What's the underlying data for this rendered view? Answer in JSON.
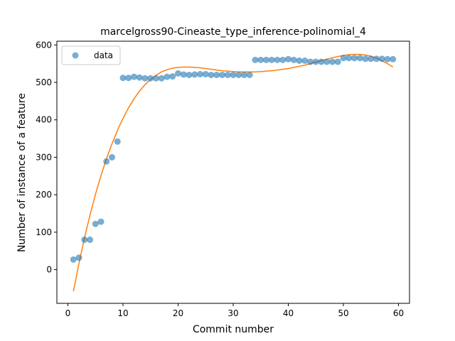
{
  "chart_data": {
    "type": "scatter",
    "title": "marcelgross90-Cineaste_type_inference-polinomial_4",
    "xlabel": "Commit number",
    "ylabel": "Number of instance of a feature",
    "xlim": [
      -2,
      62
    ],
    "ylim": [
      -90,
      610
    ],
    "x_ticks": [
      0,
      10,
      20,
      30,
      40,
      50,
      60
    ],
    "y_ticks": [
      0,
      100,
      200,
      300,
      400,
      500,
      600
    ],
    "grid": false,
    "legend": {
      "placement": "upper-left",
      "entries": [
        "data"
      ]
    },
    "colors": {
      "data": "#1f77b4",
      "fit": "#ff7f0e"
    },
    "series": [
      {
        "name": "data",
        "kind": "scatter",
        "x": [
          1,
          2,
          3,
          4,
          5,
          6,
          7,
          8,
          9,
          10,
          11,
          12,
          13,
          14,
          15,
          16,
          17,
          18,
          19,
          20,
          21,
          22,
          23,
          24,
          25,
          26,
          27,
          28,
          29,
          30,
          31,
          32,
          33,
          34,
          35,
          36,
          37,
          38,
          39,
          40,
          41,
          42,
          43,
          44,
          45,
          46,
          47,
          48,
          49,
          50,
          51,
          52,
          53,
          54,
          55,
          56,
          57,
          58,
          59
        ],
        "y": [
          27,
          32,
          80,
          80,
          122,
          128,
          289,
          300,
          342,
          512,
          512,
          515,
          513,
          511,
          511,
          511,
          511,
          515,
          516,
          524,
          521,
          520,
          521,
          522,
          522,
          520,
          520,
          520,
          520,
          520,
          520,
          520,
          520,
          560,
          560,
          560,
          560,
          560,
          560,
          562,
          560,
          558,
          558,
          555,
          555,
          555,
          555,
          555,
          555,
          565,
          565,
          565,
          565,
          563,
          563,
          563,
          563,
          562,
          562
        ]
      },
      {
        "kind": "line",
        "x": [
          1,
          2,
          3,
          4,
          5,
          6,
          7,
          8,
          9,
          10,
          11,
          12,
          13,
          14,
          15,
          16,
          17,
          18,
          19,
          20,
          21,
          22,
          23,
          24,
          25,
          26,
          27,
          28,
          29,
          30,
          31,
          32,
          33,
          34,
          35,
          36,
          37,
          38,
          39,
          40,
          41,
          42,
          43,
          44,
          45,
          46,
          47,
          48,
          49,
          50,
          51,
          52,
          53,
          54,
          55,
          56,
          57,
          58,
          59
        ],
        "y": [
          -58,
          16,
          84,
          145,
          201,
          251,
          296,
          336,
          372,
          404,
          432,
          456,
          477,
          494,
          508,
          519,
          528,
          534,
          538,
          540,
          541,
          541,
          540,
          539,
          537,
          535,
          533,
          531,
          530,
          529,
          528,
          528,
          528,
          528,
          529,
          530,
          531,
          533,
          535,
          537,
          540,
          543,
          546,
          550,
          554,
          558,
          562,
          566,
          569,
          572,
          574,
          575,
          575,
          573,
          570,
          565,
          558,
          550,
          541
        ]
      }
    ]
  }
}
